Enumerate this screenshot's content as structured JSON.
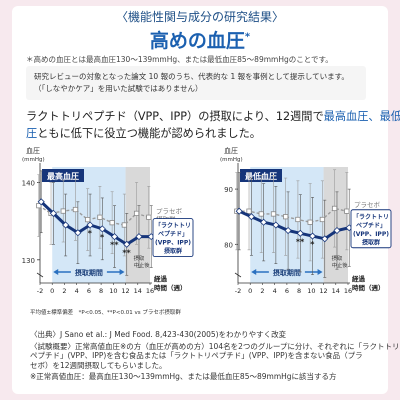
{
  "header": {
    "subtitle": "〈機能性関与成分の研究結果〉",
    "title": "高めの血圧",
    "title_mark": "*",
    "definition": "＊高めの血圧とは最高血圧130～139mmHg、または最低血圧85～89mmHgのことです。"
  },
  "note": {
    "line1": "研究レビューの対象となった論文 10 報のうち、代表的な 1 報を事例として提示しています。",
    "line2": "（「しなやかケア」を用いた試験ではありません）"
  },
  "headline": {
    "line1": "ラクトトリペプチド（VPP、IPP）の摂取により、12週間で",
    "line1_hl": "最高血圧、最低血",
    "line2_hl": "圧",
    "line2": "ともに低下に役立つ機能が認められました。"
  },
  "colors": {
    "accent": "#1b60b0",
    "navy": "#16357a",
    "intake_band": "#d4e7f7",
    "stop_band": "#d9d9d9",
    "placebo": "#9b9b9b",
    "arrow": "#2a70c0"
  },
  "chart_data": [
    {
      "type": "line",
      "title": "最高血圧",
      "ylabel": "血圧",
      "yunit": "(mmHg)",
      "ylim": [
        127,
        142
      ],
      "yticks": [
        130,
        140
      ],
      "xlabel": "経過時間（週）",
      "x_label_lines": [
        "経過",
        "時間（週）"
      ],
      "x": [
        -2,
        0,
        2,
        4,
        6,
        8,
        10,
        12,
        14,
        16
      ],
      "intake_period": [
        0,
        12
      ],
      "intake_label": "摂取期間",
      "stop_period": [
        12,
        16
      ],
      "stop_label": "摂取中止後",
      "series": [
        {
          "name": "プラセボ摂取群",
          "label_lines": [
            "プラセボ",
            "摂取群"
          ],
          "values": [
            137,
            136,
            136.3,
            136.5,
            135.2,
            135.5,
            134.8,
            134.5,
            136,
            135.5
          ],
          "err": [
            4,
            4,
            4,
            4,
            4,
            4,
            4,
            4,
            4,
            4
          ]
        },
        {
          "name": "「ラクトトリペプチド」(VPP、IPP)摂取群",
          "label_lines": [
            "「ラクトトリ",
            "ペプチド」",
            "(VPP、IPP)",
            "摂取群"
          ],
          "values": [
            137.5,
            136,
            134.5,
            133.5,
            134.5,
            134,
            133,
            132,
            133,
            133
          ],
          "err": [
            4,
            4,
            4,
            4,
            4,
            4,
            4,
            4,
            4,
            4
          ]
        }
      ],
      "significance": [
        {
          "x": 6,
          "mark": "*"
        },
        {
          "x": 8,
          "mark": "*"
        },
        {
          "x": 10,
          "mark": "**"
        },
        {
          "x": 12,
          "mark": "**"
        }
      ]
    },
    {
      "type": "line",
      "title": "最低血圧",
      "ylabel": "血圧",
      "yunit": "(mmHg)",
      "ylim": [
        73,
        94
      ],
      "yticks": [
        80,
        90
      ],
      "xlabel": "経過時間（週）",
      "x_label_lines": [
        "経過",
        "時間（週）"
      ],
      "x": [
        -2,
        0,
        2,
        4,
        6,
        8,
        10,
        12,
        14,
        16
      ],
      "intake_period": [
        0,
        12
      ],
      "intake_label": "摂取期間",
      "stop_period": [
        12,
        16
      ],
      "stop_label": "摂取中止後",
      "series": [
        {
          "name": "プラセボ摂取群",
          "label_lines": [
            "プラセボ",
            "摂取群"
          ],
          "values": [
            86,
            86,
            85.5,
            85.5,
            85,
            84.5,
            84,
            84.5,
            86.5,
            86
          ],
          "err": [
            7,
            7,
            7,
            7,
            7,
            7,
            7,
            7,
            7,
            7
          ]
        },
        {
          "name": "「ラクトトリペプチド」(VPP、IPP)摂取群",
          "label_lines": [
            "「ラクトトリ",
            "ペプチド」",
            "(VPP、IPP)",
            "摂取群"
          ],
          "values": [
            86,
            85,
            84,
            83.5,
            82.5,
            82,
            81.5,
            81,
            82.5,
            83
          ],
          "err": [
            7,
            7,
            7,
            7,
            7,
            7,
            7,
            7,
            7,
            7
          ]
        }
      ],
      "significance": [
        {
          "x": 8,
          "mark": "**"
        },
        {
          "x": 10,
          "mark": "*"
        }
      ]
    }
  ],
  "footer": {
    "pvalue_note": "平均値±標準偏差　*P<0.05、**P<0.01 vs プラセボ摂取群",
    "source": "〈出典〉J Sano et al.: J Med Food. 8,423-430(2005)をわかりやすく改変",
    "summary1": "〈試験概要〉正常高値血圧※の方（血圧が高めの方）104名を2つのグループに分け、それぞれに「ラクトトリ",
    "summary2": "ペプチド」(VPP、IPP)を含む食品または「ラクトトリペプチド」(VPP、IPP)を含まない食品（プラセボ）を12週間摂取してもらいました。",
    "summary3": "※正常高値血圧：最高血圧130～139mmHg、または最低血圧85～89mmHgに該当する方"
  }
}
